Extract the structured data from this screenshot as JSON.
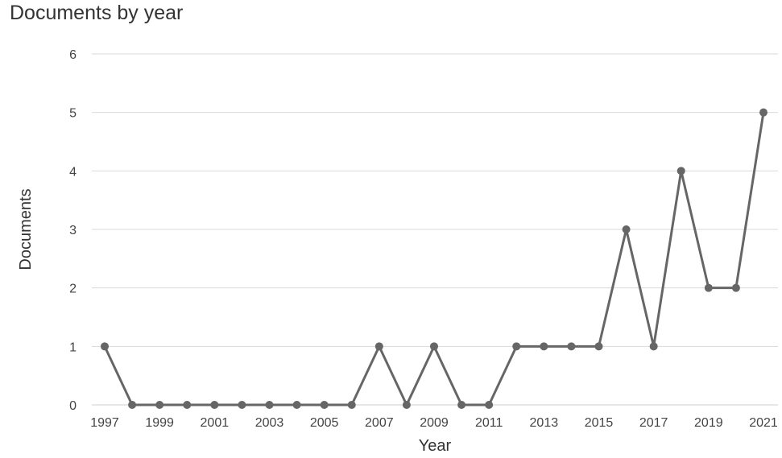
{
  "colors": {
    "series": "#666666",
    "grid": "#d9d9d9",
    "text": "#333333"
  },
  "chart_data": {
    "type": "line",
    "title": "Documents by year",
    "xlabel": "Year",
    "ylabel": "Documents",
    "ylim": [
      0,
      6
    ],
    "yticks": [
      "0",
      "1",
      "2",
      "3",
      "4",
      "5",
      "6"
    ],
    "x": [
      1997,
      1998,
      1999,
      2000,
      2001,
      2002,
      2003,
      2004,
      2005,
      2006,
      2007,
      2008,
      2009,
      2010,
      2011,
      2012,
      2013,
      2014,
      2015,
      2016,
      2017,
      2018,
      2019,
      2020,
      2021
    ],
    "xtick_labels": [
      "1997",
      "1999",
      "2001",
      "2003",
      "2005",
      "2007",
      "2009",
      "2011",
      "2013",
      "2015",
      "2017",
      "2019",
      "2021"
    ],
    "series": [
      {
        "values": [
          1,
          0,
          0,
          0,
          0,
          0,
          0,
          0,
          0,
          0,
          1,
          0,
          1,
          0,
          0,
          1,
          1,
          1,
          1,
          3,
          1,
          4,
          2,
          2,
          5
        ]
      }
    ],
    "grid": true,
    "legend": "none"
  }
}
